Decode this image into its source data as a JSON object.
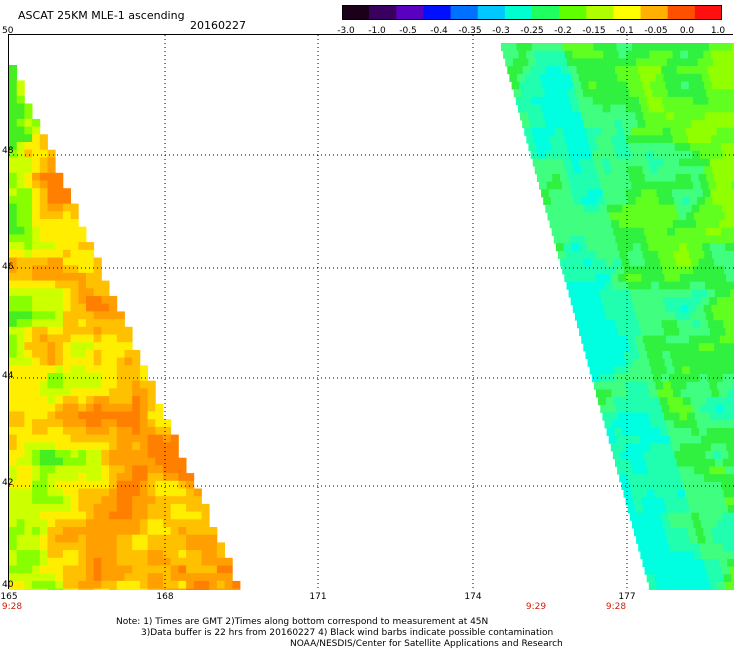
{
  "header": {
    "title": "ASCAT 25KM MLE-1 ascending",
    "date": "20160227"
  },
  "colorbar": {
    "labels": [
      "-3.0",
      "-1.0",
      "-0.5",
      "-0.4",
      "-0.35",
      "-0.3",
      "-0.25",
      "-0.2",
      "-0.15",
      "-0.1",
      "-0.05",
      "0.0",
      "1.0"
    ],
    "colors": [
      "#1a0018",
      "#3a0060",
      "#5a00c0",
      "#0010ff",
      "#0070ff",
      "#00c8ff",
      "#00ffd0",
      "#20ff60",
      "#60ff00",
      "#b0ff00",
      "#ffff00",
      "#ffb000",
      "#ff5000",
      "#ff1010"
    ]
  },
  "axes": {
    "lat_labels": [
      "50",
      "48",
      "46",
      "44",
      "42",
      "40"
    ],
    "lon_labels": [
      "165",
      "168",
      "171",
      "174",
      "177"
    ],
    "time_labels": [
      "9:28",
      "9:29",
      "9:28"
    ]
  },
  "notes": {
    "line1": "Note: 1) Times are GMT 2)Times along bottom correspond to measurement at 45N",
    "line2": "3)Data buffer is 22 hrs from 20160227 4) Black wind barbs indicate possible contamination",
    "line3": "NOAA/NESDIS/Center for Satellite Applications and Research"
  }
}
